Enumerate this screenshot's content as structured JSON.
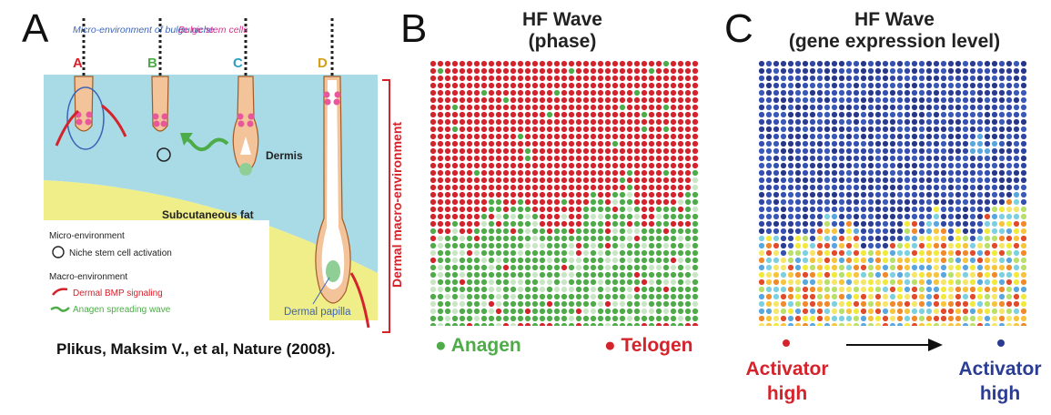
{
  "panels": {
    "a": {
      "letter": "A",
      "stages": [
        "A",
        "B",
        "C",
        "D"
      ],
      "callouts": {
        "micro_env": "Micro-environment of bulge niche",
        "bulge_stem": "Bulge stem cells",
        "dermis": "Dermis",
        "subcutaneous": "Subcutaneous fat",
        "dermal_papilla": "Dermal papilla",
        "macro_env_vertical": "Dermal macro-environment"
      },
      "legend": {
        "micro_heading": "Micro-environment",
        "niche_activation": "Niche stem cell activation",
        "macro_heading": "Macro-environment",
        "bmp": "Dermal BMP signaling",
        "anagen_wave": "Anagen spreading wave"
      },
      "citation": "Plikus, Maksim V., et al, Nature  (2008)."
    },
    "b": {
      "letter": "B",
      "title_line1": "HF Wave",
      "title_line2": "(phase)",
      "legend_anagen": "Anagen",
      "legend_telogen": "Telogen"
    },
    "c": {
      "letter": "C",
      "title_line1": "HF Wave",
      "title_line2": "(gene expression level)",
      "activator_low_line1": "Activator",
      "activator_low_line2": "high",
      "activator_high_line1": "Activator",
      "activator_high_line2": "high"
    }
  },
  "colors": {
    "telogen": "#d5232c",
    "anagen": "#4dac48",
    "anagen_light": "#c9e6c4",
    "expr_low": "#2b3d93",
    "expr_high": "#d5232c"
  }
}
